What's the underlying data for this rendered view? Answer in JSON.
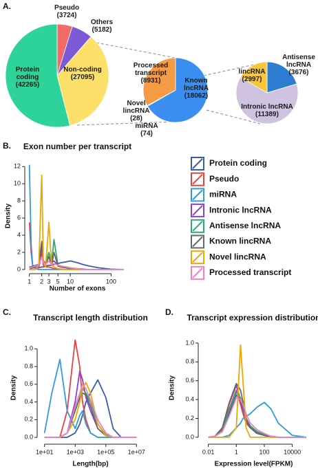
{
  "panel_labels": [
    "A.",
    "B.",
    "C.",
    "D."
  ],
  "chart_data": [
    {
      "type": "pie",
      "categories": [
        "Pseudo",
        "Others",
        "Non-coding",
        "Protein coding"
      ],
      "values": [
        3724,
        5182,
        27095,
        42265
      ],
      "value_labels": [
        "(3724)",
        "(5182)",
        "(27095)",
        "(42265)"
      ],
      "colors": [
        "#f26b6b",
        "#7b5ad6",
        "#fde06a",
        "#2ed39a"
      ]
    },
    {
      "type": "pie",
      "categories": [
        "Known lncRNA",
        "miRNA",
        "Novel lincRNA",
        "Processed transcript"
      ],
      "values": [
        18062,
        74,
        28,
        8931
      ],
      "value_labels": [
        "(18062)",
        "(74)",
        "(28)",
        "(8931)"
      ],
      "colors": [
        "#3a8ef0",
        "#6b4fd0",
        "#e84a4a",
        "#f59a45"
      ]
    },
    {
      "type": "pie",
      "categories": [
        "Antisense lncRNA",
        "Intronic lncRNA",
        "lincRNA"
      ],
      "values": [
        3676,
        11389,
        2997
      ],
      "value_labels": [
        "(3676)",
        "(11389)",
        "(2997)"
      ],
      "colors": [
        "#2c7fd0",
        "#cfc3e0",
        "#f8c63a"
      ]
    },
    {
      "type": "line",
      "title": "Exon number per transcript",
      "xlabel": "Number of exons",
      "ylabel": "Density",
      "log_x": true,
      "x": [
        1,
        1.1,
        1.2,
        1.4,
        1.7,
        2,
        2.2,
        2.5,
        3,
        3.5,
        4,
        5,
        6,
        8,
        10,
        15,
        20,
        30,
        50,
        100,
        200
      ],
      "xlim": [
        0.9,
        250
      ],
      "xticks": [
        1,
        2,
        3,
        5,
        10,
        100
      ],
      "ylim": [
        0,
        12.5
      ],
      "yticks": [
        0,
        2,
        4,
        6,
        8,
        10,
        12
      ],
      "series": [
        {
          "name": "Protein coding",
          "color": "#3b5ba9",
          "values": [
            0,
            0.1,
            0.2,
            0.2,
            0.2,
            0.3,
            0.3,
            0.4,
            0.5,
            0.5,
            0.6,
            0.7,
            0.8,
            0.9,
            1.0,
            0.8,
            0.6,
            0.4,
            0.2,
            0.05,
            0
          ]
        },
        {
          "name": "Pseudo",
          "color": "#e8413c",
          "values": [
            5.5,
            2,
            0.5,
            0.3,
            0.2,
            1.8,
            0.5,
            0.3,
            0.3,
            0.2,
            0.1,
            0.1,
            0.05,
            0,
            0,
            0,
            0,
            0,
            0,
            0,
            0
          ]
        },
        {
          "name": "miRNA",
          "color": "#2e9be0",
          "values": [
            12.2,
            3,
            0.5,
            0.1,
            0,
            0,
            0,
            0,
            0,
            0,
            0,
            0,
            0,
            0,
            0,
            0,
            0,
            0,
            0,
            0,
            0
          ]
        },
        {
          "name": "Intronic lncRNA",
          "color": "#8a3fd6",
          "values": [
            0.2,
            0.2,
            0.3,
            0.3,
            0.4,
            2.5,
            0.8,
            0.8,
            1.5,
            0.8,
            1.0,
            0.5,
            0.4,
            0.3,
            0.2,
            0.1,
            0.05,
            0,
            0,
            0,
            0
          ]
        },
        {
          "name": "Antisense lncRNA",
          "color": "#2eaa6e",
          "values": [
            0.3,
            0.3,
            0.4,
            0.5,
            0.6,
            3.3,
            1,
            0.8,
            2.0,
            0.8,
            3.5,
            0.5,
            0.3,
            0.2,
            0.1,
            0.05,
            0,
            0,
            0,
            0,
            0
          ]
        },
        {
          "name": "Known lincRNA",
          "color": "#666666",
          "values": [
            0.3,
            0.3,
            0.4,
            0.4,
            0.5,
            3.1,
            1,
            0.6,
            1.5,
            0.5,
            2,
            0.4,
            0.3,
            0.2,
            0.1,
            0,
            0,
            0,
            0,
            0,
            0
          ]
        },
        {
          "name": "Novel lincRNA",
          "color": "#f0a500",
          "values": [
            0,
            0,
            0,
            0,
            0.5,
            11,
            1,
            0.3,
            5.5,
            0.5,
            0.3,
            0.1,
            0,
            0,
            0,
            0,
            0,
            0,
            0,
            0,
            0
          ]
        },
        {
          "name": "Processed transcript",
          "color": "#ee7fc8",
          "values": [
            0.2,
            0.2,
            0.3,
            0.4,
            0.5,
            1.5,
            0.8,
            0.6,
            1.0,
            0.6,
            0.7,
            0.5,
            0.4,
            0.3,
            0.2,
            0.1,
            0,
            0,
            0,
            0,
            0
          ]
        }
      ]
    },
    {
      "type": "line",
      "title": "Transcript length distribution",
      "xlabel": "Length(bp)",
      "ylabel": "Density",
      "log_x": true,
      "x": [
        10,
        30,
        100,
        300,
        1000,
        2000,
        3000,
        5000,
        10000,
        30000,
        100000,
        300000,
        1000000,
        10000000
      ],
      "xlim": [
        5,
        20000000
      ],
      "xticks": [
        {
          "value": 10,
          "label": "1e+01"
        },
        {
          "value": 1000,
          "label": "1e+03"
        },
        {
          "value": 100000,
          "label": "1e+05"
        },
        {
          "value": 10000000,
          "label": "1e+07"
        }
      ],
      "ylim": [
        -0.03,
        1.15
      ],
      "yticks": [
        {
          "value": 0,
          "label": "0.0"
        },
        {
          "value": 0.2,
          "label": "0.2"
        },
        {
          "value": 0.4,
          "label": "0.4"
        },
        {
          "value": 0.6,
          "label": "0.6"
        },
        {
          "value": 0.8,
          "label": "0.8"
        },
        {
          "value": 1,
          "label": "1.0"
        }
      ],
      "series": [
        {
          "color": "#3b5ba9",
          "values": [
            0,
            0,
            0,
            0,
            0.05,
            0.15,
            0.25,
            0.4,
            0.5,
            0.65,
            0.45,
            0.1,
            0,
            0
          ]
        },
        {
          "color": "#e8413c",
          "values": [
            0,
            0,
            0,
            0.3,
            1.1,
            0.8,
            0.4,
            0.2,
            0.05,
            0,
            0,
            0,
            0,
            0
          ]
        },
        {
          "color": "#2e9be0",
          "values": [
            0.05,
            0.5,
            0.88,
            0.3,
            0.1,
            0.25,
            0.3,
            0.15,
            0.05,
            0,
            0,
            0,
            0,
            0
          ]
        },
        {
          "color": "#8a3fd6",
          "values": [
            0,
            0,
            0,
            0.05,
            0.4,
            0.75,
            0.65,
            0.45,
            0.3,
            0.1,
            0.02,
            0,
            0,
            0
          ]
        },
        {
          "color": "#2eaa6e",
          "values": [
            0,
            0,
            0,
            0.05,
            0.3,
            0.45,
            0.55,
            0.5,
            0.4,
            0.15,
            0.03,
            0,
            0,
            0
          ]
        },
        {
          "color": "#666666",
          "values": [
            0,
            0,
            0,
            0.05,
            0.3,
            0.45,
            0.5,
            0.48,
            0.35,
            0.1,
            0.02,
            0,
            0,
            0
          ]
        },
        {
          "color": "#f0a500",
          "values": [
            0,
            0,
            0,
            0.05,
            0.2,
            0.4,
            0.55,
            0.62,
            0.5,
            0.15,
            0.02,
            0,
            0,
            0
          ]
        },
        {
          "color": "#ee7fc8",
          "values": [
            0,
            0,
            0,
            0.05,
            0.35,
            0.5,
            0.6,
            0.55,
            0.42,
            0.2,
            0.05,
            0,
            0,
            0
          ]
        }
      ]
    },
    {
      "type": "line",
      "title": "Transcript expression distribution",
      "xlabel": "Expression level(FPKM)",
      "ylabel": "Density",
      "log_x": true,
      "x": [
        0.01,
        0.03,
        0.1,
        0.3,
        1,
        2,
        3,
        5,
        10,
        30,
        100,
        300,
        1000,
        10000,
        100000
      ],
      "xlim": [
        0.003,
        100000
      ],
      "xticks": [
        0.01,
        1,
        100,
        10000
      ],
      "ylim": [
        -0.03,
        1.08
      ],
      "yticks": [
        {
          "value": 0,
          "label": "0.0"
        },
        {
          "value": 0.2,
          "label": "0.2"
        },
        {
          "value": 0.4,
          "label": "0.4"
        },
        {
          "value": 0.6,
          "label": "0.6"
        },
        {
          "value": 0.8,
          "label": "0.8"
        },
        {
          "value": 1,
          "label": "1.0"
        }
      ],
      "series": [
        {
          "color": "#3b5ba9",
          "values": [
            0,
            0.01,
            0.06,
            0.25,
            0.45,
            0.38,
            0.3,
            0.2,
            0.12,
            0.06,
            0.03,
            0.01,
            0,
            0,
            0
          ]
        },
        {
          "color": "#e8413c",
          "values": [
            0,
            0.01,
            0.08,
            0.3,
            0.5,
            0.35,
            0.25,
            0.15,
            0.1,
            0.05,
            0.03,
            0.01,
            0,
            0,
            0
          ]
        },
        {
          "color": "#2e9be0",
          "values": [
            0,
            0,
            0,
            0.02,
            0.1,
            0.15,
            0.2,
            0.22,
            0.25,
            0.32,
            0.37,
            0.3,
            0.15,
            0.02,
            0
          ]
        },
        {
          "color": "#8a3fd6",
          "values": [
            0,
            0.01,
            0.1,
            0.35,
            0.55,
            0.4,
            0.3,
            0.18,
            0.1,
            0.05,
            0.02,
            0.01,
            0,
            0,
            0
          ]
        },
        {
          "color": "#2eaa6e",
          "values": [
            0,
            0.01,
            0.07,
            0.28,
            0.48,
            0.42,
            0.33,
            0.2,
            0.12,
            0.06,
            0.03,
            0.01,
            0,
            0,
            0
          ]
        },
        {
          "color": "#666666",
          "values": [
            0,
            0.01,
            0.1,
            0.36,
            0.57,
            0.5,
            0.38,
            0.2,
            0.1,
            0.04,
            0.02,
            0,
            0,
            0,
            0
          ]
        },
        {
          "color": "#f0a500",
          "values": [
            0,
            0,
            0,
            0,
            0.1,
            0.98,
            0.6,
            0.1,
            0,
            0,
            0,
            0,
            0,
            0,
            0
          ]
        },
        {
          "color": "#ee7fc8",
          "values": [
            0,
            0.01,
            0.06,
            0.22,
            0.42,
            0.4,
            0.35,
            0.25,
            0.15,
            0.08,
            0.04,
            0.01,
            0,
            0,
            0
          ]
        }
      ]
    }
  ]
}
